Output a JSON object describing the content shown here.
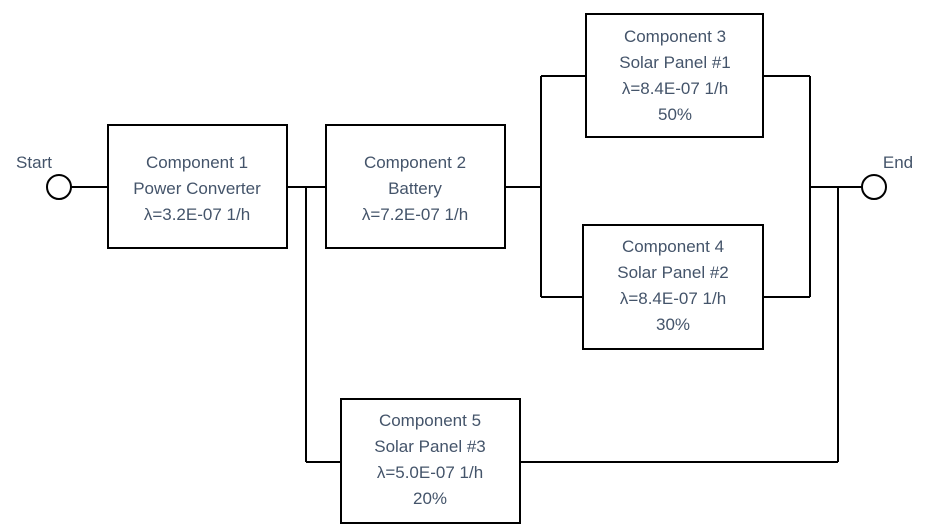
{
  "start_label": "Start",
  "end_label": "End",
  "components": [
    {
      "id": "component-1",
      "title": "Component 1",
      "name": "Power Converter",
      "rate": "λ=3.2E-07 1/h",
      "share": ""
    },
    {
      "id": "component-2",
      "title": "Component 2",
      "name": "Battery",
      "rate": "λ=7.2E-07 1/h",
      "share": ""
    },
    {
      "id": "component-3",
      "title": "Component 3",
      "name": "Solar Panel #1",
      "rate": "λ=8.4E-07 1/h",
      "share": "50%"
    },
    {
      "id": "component-4",
      "title": "Component 4",
      "name": "Solar Panel #2",
      "rate": "λ=8.4E-07 1/h",
      "share": "30%"
    },
    {
      "id": "component-5",
      "title": "Component 5",
      "name": "Solar Panel #3",
      "rate": "λ=5.0E-07 1/h",
      "share": "20%"
    }
  ]
}
